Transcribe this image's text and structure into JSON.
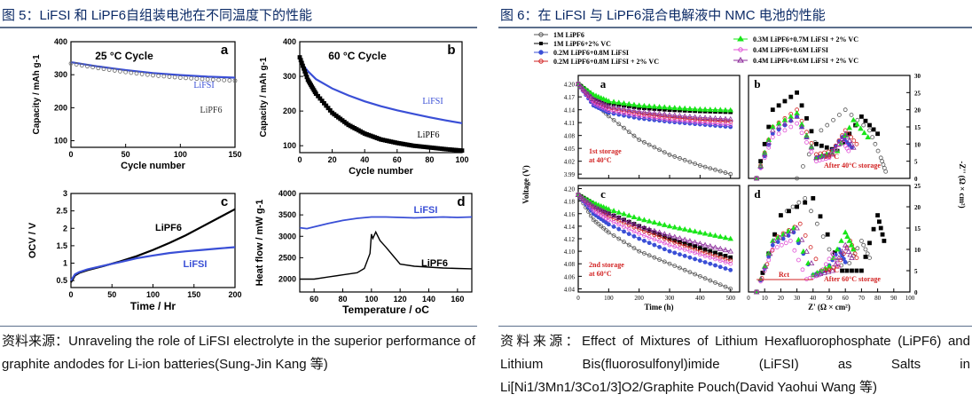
{
  "left": {
    "title": "图 5：LiFSI 和 LiPF6自组装电池在不同温度下的性能",
    "source_label": "资料来源：",
    "source_text": "Unraveling the role of LiFSI electrolyte in the superior performance of graphite andodes for Li-ion batteries(Sung-Jin Kang 等)"
  },
  "right": {
    "title": "图 6：在 LiFSI 与 LiPF6混合电解液中 NMC 电池的性能",
    "source_label": "资料来源：",
    "source_text": "Effect of Mixtures of Lithium Hexafluorophosphate (LiPF6) and Lithium Bis(fluorosulfonyl)imide (LiFSI) as Salts in Li[Ni1/3Mn1/3Co1/3]O2/Graphite Pouch(David Yaohui Wang 等)"
  },
  "colors": {
    "lifsi": "#3a4fd6",
    "lipf6": "#111111",
    "green": "#19e619",
    "pink": "#e04fd6",
    "red": "#d22222",
    "title": "#0b2a66"
  },
  "chart_data": [
    {
      "id": "fig5a",
      "type": "line",
      "panel_letter": "a",
      "title": "25 °C Cycle",
      "xlabel": "Cycle number",
      "ylabel": "Capacity / mAh g-1",
      "xlim": [
        0,
        150
      ],
      "ylim": [
        80,
        400
      ],
      "xticks": [
        0,
        50,
        100,
        150
      ],
      "yticks": [
        100,
        200,
        300,
        400
      ],
      "series": [
        {
          "name": "LiFSI",
          "x": [
            0,
            25,
            50,
            75,
            100,
            125,
            150
          ],
          "y": [
            338,
            325,
            314,
            305,
            299,
            294,
            291
          ]
        },
        {
          "name": "LiPF6",
          "x": [
            0,
            25,
            50,
            75,
            100,
            125,
            150
          ],
          "y": [
            334,
            320,
            308,
            298,
            291,
            286,
            282
          ]
        }
      ]
    },
    {
      "id": "fig5b",
      "type": "line",
      "panel_letter": "b",
      "title": "60 °C Cycle",
      "xlabel": "Cycle number",
      "ylabel": "Capacity / mAh g-1",
      "xlim": [
        0,
        100
      ],
      "ylim": [
        80,
        400
      ],
      "xticks": [
        0,
        20,
        40,
        60,
        80,
        100
      ],
      "yticks": [
        100,
        200,
        300,
        400
      ],
      "series": [
        {
          "name": "LiFSI",
          "x": [
            0,
            5,
            10,
            20,
            30,
            40,
            50,
            60,
            70,
            80,
            90,
            100
          ],
          "y": [
            345,
            315,
            292,
            265,
            245,
            228,
            214,
            202,
            192,
            182,
            173,
            165
          ]
        },
        {
          "name": "LiPF6",
          "x": [
            0,
            5,
            10,
            20,
            30,
            40,
            50,
            60,
            70,
            80,
            90,
            100
          ],
          "y": [
            355,
            290,
            250,
            195,
            160,
            135,
            118,
            108,
            100,
            95,
            90,
            86
          ]
        }
      ]
    },
    {
      "id": "fig5c",
      "type": "line",
      "panel_letter": "c",
      "xlabel": "Time / Hr",
      "ylabel": "OCV / V",
      "xlim": [
        0,
        200
      ],
      "ylim": [
        0.3,
        3.0
      ],
      "xticks": [
        0,
        50,
        100,
        150,
        200
      ],
      "yticks": [
        0.5,
        1.0,
        1.5,
        2.0,
        2.5,
        3.0
      ],
      "series": [
        {
          "name": "LiPF6",
          "x": [
            0,
            5,
            10,
            20,
            40,
            60,
            80,
            100,
            120,
            140,
            160,
            180,
            200
          ],
          "y": [
            0.45,
            0.65,
            0.72,
            0.8,
            0.92,
            1.05,
            1.2,
            1.38,
            1.58,
            1.8,
            2.05,
            2.3,
            2.55
          ]
        },
        {
          "name": "LiFSI",
          "x": [
            0,
            5,
            10,
            20,
            40,
            60,
            80,
            100,
            120,
            140,
            160,
            180,
            200
          ],
          "y": [
            0.5,
            0.68,
            0.74,
            0.82,
            0.93,
            1.03,
            1.14,
            1.22,
            1.29,
            1.34,
            1.38,
            1.42,
            1.46
          ]
        }
      ]
    },
    {
      "id": "fig5d",
      "type": "line",
      "panel_letter": "d",
      "xlabel": "Temperature / oC",
      "ylabel": "Heat flow / mW g-1",
      "xlim": [
        50,
        170
      ],
      "ylim": [
        1700,
        4000
      ],
      "xticks": [
        60,
        80,
        100,
        120,
        140,
        160
      ],
      "yticks": [
        2000,
        2500,
        3000,
        3500,
        4000
      ],
      "series": [
        {
          "name": "LiFSI",
          "x": [
            50,
            55,
            60,
            70,
            80,
            90,
            100,
            110,
            120,
            130,
            140,
            150,
            160,
            170
          ],
          "y": [
            3200,
            3180,
            3220,
            3300,
            3370,
            3420,
            3450,
            3450,
            3440,
            3430,
            3440,
            3450,
            3440,
            3450
          ]
        },
        {
          "name": "LiPF6",
          "x": [
            50,
            60,
            70,
            80,
            90,
            95,
            99,
            100,
            101,
            103,
            106,
            110,
            115,
            120,
            130,
            140,
            150,
            160,
            170
          ],
          "y": [
            2000,
            2000,
            2050,
            2100,
            2150,
            2250,
            2600,
            3050,
            2950,
            3100,
            2900,
            2750,
            2550,
            2350,
            2300,
            2280,
            2260,
            2250,
            2240
          ]
        }
      ]
    },
    {
      "id": "fig6a",
      "type": "scatter",
      "panel_letter": "a",
      "annotation": "1st storage at 40°C",
      "ylabel": "Voltage (V)",
      "xlim": [
        0,
        530
      ],
      "ylim": [
        3.98,
        4.22
      ],
      "xticks": [
        0,
        100,
        200,
        300,
        400,
        500
      ],
      "yticks": [
        3.99,
        4.02,
        4.05,
        4.08,
        4.11,
        4.14,
        4.17,
        4.2
      ],
      "ytick_labels": [
        "3.99",
        "4.02",
        "4.05",
        "4.08",
        "4.11",
        "4.14",
        "4.17",
        "4.20"
      ],
      "series": [
        {
          "name": "1M LiPF6",
          "x": [
            0,
            50,
            100,
            200,
            300,
            400,
            500
          ],
          "y": [
            4.2,
            4.16,
            4.125,
            4.07,
            4.035,
            4.01,
            3.99
          ]
        },
        {
          "name": "1M LiPF6+2% VC",
          "x": [
            0,
            50,
            100,
            200,
            300,
            400,
            500
          ],
          "y": [
            4.2,
            4.17,
            4.155,
            4.145,
            4.14,
            4.137,
            4.135
          ]
        },
        {
          "name": "0.2M LiPF6+0.8M LiFSI",
          "x": [
            0,
            50,
            100,
            200,
            300,
            400,
            500
          ],
          "y": [
            4.2,
            4.15,
            4.133,
            4.12,
            4.112,
            4.106,
            4.1
          ]
        },
        {
          "name": "0.2M LiPF6+0.8M LiFSI + 2% VC",
          "x": [
            0,
            50,
            100,
            200,
            300,
            400,
            500
          ],
          "y": [
            4.2,
            4.16,
            4.142,
            4.13,
            4.122,
            4.116,
            4.112
          ]
        },
        {
          "name": "0.3M LiPF6+0.7M LiFSI + 2% VC",
          "x": [
            0,
            50,
            100,
            200,
            300,
            400,
            500
          ],
          "y": [
            4.2,
            4.175,
            4.16,
            4.15,
            4.145,
            4.141,
            4.139
          ]
        },
        {
          "name": "0.4M LiPF6+0.6M LiFSI",
          "x": [
            0,
            50,
            100,
            200,
            300,
            400,
            500
          ],
          "y": [
            4.2,
            4.155,
            4.138,
            4.125,
            4.116,
            4.11,
            4.105
          ]
        },
        {
          "name": "0.4M LiPF6+0.6M LiFSI + 2% VC",
          "x": [
            0,
            50,
            100,
            200,
            300,
            400,
            500
          ],
          "y": [
            4.2,
            4.165,
            4.148,
            4.136,
            4.128,
            4.122,
            4.118
          ]
        }
      ]
    },
    {
      "id": "fig6c",
      "type": "scatter",
      "panel_letter": "c",
      "annotation": "2nd storage at 60°C",
      "xlabel": "Time (h)",
      "ylabel": "Voltage (V)",
      "xlim": [
        0,
        530
      ],
      "ylim": [
        4.035,
        4.205
      ],
      "xticks": [
        0,
        100,
        200,
        300,
        400,
        500
      ],
      "yticks": [
        4.04,
        4.06,
        4.08,
        4.1,
        4.12,
        4.14,
        4.16,
        4.18,
        4.2
      ],
      "ytick_labels": [
        "4.04",
        "4.06",
        "4.08",
        "4.10",
        "4.12",
        "4.14",
        "4.16",
        "4.18",
        "4.20"
      ],
      "series": [
        {
          "name": "1M LiPF6",
          "x": [
            0,
            50,
            100,
            200,
            300,
            400,
            500
          ],
          "y": [
            4.19,
            4.15,
            4.13,
            4.1,
            4.08,
            4.06,
            4.04
          ]
        },
        {
          "name": "1M LiPF6+2% VC",
          "x": [
            0,
            50,
            100,
            200,
            300,
            400,
            500
          ],
          "y": [
            4.19,
            4.175,
            4.16,
            4.14,
            4.12,
            4.105,
            4.09
          ]
        },
        {
          "name": "0.2M LiPF6+0.8M LiFSI",
          "x": [
            0,
            50,
            100,
            200,
            300,
            400,
            500
          ],
          "y": [
            4.19,
            4.16,
            4.143,
            4.12,
            4.1,
            4.085,
            4.07
          ]
        },
        {
          "name": "0.2M LiPF6+0.8M LiFSI + 2% VC",
          "x": [
            0,
            50,
            100,
            200,
            300,
            400,
            500
          ],
          "y": [
            4.19,
            4.17,
            4.155,
            4.135,
            4.117,
            4.1,
            4.085
          ]
        },
        {
          "name": "0.3M LiPF6+0.7M LiFSI + 2% VC",
          "x": [
            0,
            50,
            100,
            200,
            300,
            400,
            500
          ],
          "y": [
            4.19,
            4.177,
            4.167,
            4.152,
            4.14,
            4.13,
            4.12
          ]
        },
        {
          "name": "0.4M LiPF6+0.6M LiFSI",
          "x": [
            0,
            50,
            100,
            200,
            300,
            400,
            500
          ],
          "y": [
            4.19,
            4.165,
            4.15,
            4.128,
            4.11,
            4.095,
            4.08
          ]
        },
        {
          "name": "0.4M LiPF6+0.6M LiFSI + 2% VC",
          "x": [
            0,
            50,
            100,
            200,
            300,
            400,
            500
          ],
          "y": [
            4.19,
            4.172,
            4.16,
            4.14,
            4.125,
            4.112,
            4.1
          ]
        }
      ]
    },
    {
      "id": "fig6b",
      "type": "scatter",
      "panel_letter": "b",
      "annotation": [
        "10°C",
        "After 40°C storage"
      ],
      "ylabel": "-Z'' (Ω × cm²)",
      "xlim": [
        0,
        100
      ],
      "ylim": [
        0,
        30
      ],
      "yticks": [
        0,
        5,
        10,
        15,
        20,
        25,
        30
      ],
      "series": [
        {
          "name": "1M LiPF6",
          "x": [
            30,
            45,
            60,
            75,
            82,
            85
          ],
          "y": [
            0,
            14,
            20,
            14,
            6,
            2
          ]
        },
        {
          "name": "1M LiPF6+2% VC",
          "x": [
            5,
            15,
            30,
            42,
            55,
            70,
            80
          ],
          "y": [
            0,
            20,
            25,
            10,
            8,
            18,
            13
          ]
        },
        {
          "name": "0.2M LiPF6+0.8M LiFSI",
          "x": [
            5,
            15,
            30,
            42,
            50,
            58,
            64
          ],
          "y": [
            0,
            13,
            18,
            6,
            7,
            12,
            9
          ]
        },
        {
          "name": "0.2M LiPF6+0.8M LiFSI + 2% VC",
          "x": [
            5,
            15,
            30,
            42,
            52,
            60,
            67
          ],
          "y": [
            0,
            15,
            20,
            7,
            8,
            14,
            10
          ]
        },
        {
          "name": "0.3M LiPF6+0.7M LiFSI + 2% VC",
          "x": [
            5,
            15,
            30,
            42,
            55,
            65,
            74
          ],
          "y": [
            0,
            15,
            19,
            6,
            8,
            17,
            12
          ]
        },
        {
          "name": "0.4M LiPF6+0.6M LiFSI",
          "x": [
            5,
            15,
            30,
            42,
            50,
            58,
            62
          ],
          "y": [
            0,
            12,
            16,
            5,
            6,
            11,
            8
          ]
        },
        {
          "name": "0.4M LiPF6+0.6M LiFSI + 2% VC",
          "x": [
            5,
            15,
            30,
            42,
            52,
            60,
            65
          ],
          "y": [
            0,
            14,
            18,
            6,
            7,
            13,
            9
          ]
        }
      ]
    },
    {
      "id": "fig6d",
      "type": "scatter",
      "panel_letter": "d",
      "annotation": [
        "10°C",
        "After 60°C storage"
      ],
      "rct_label": "Rct",
      "xlabel": "Z' (Ω × cm²)",
      "ylabel": "-Z'' (Ω × cm²)",
      "xlim": [
        0,
        100
      ],
      "ylim": [
        0,
        25
      ],
      "xticks": [
        0,
        10,
        20,
        30,
        40,
        50,
        60,
        70,
        80,
        90,
        100
      ],
      "yticks": [
        0,
        5,
        10,
        15,
        20,
        25
      ],
      "series": [
        {
          "name": "1M LiPF6",
          "x": [
            5,
            20,
            35,
            50,
            60,
            70,
            75
          ],
          "y": [
            0,
            18,
            22,
            10,
            5,
            12,
            8
          ]
        },
        {
          "name": "1M LiPF6+2% VC",
          "x": [
            5,
            20,
            40,
            58,
            70,
            80,
            84
          ],
          "y": [
            0,
            18,
            22,
            5,
            5,
            18,
            12
          ]
        },
        {
          "name": "0.2M LiPF6+0.8M LiFSI",
          "x": [
            5,
            15,
            28,
            40,
            48,
            56,
            60
          ],
          "y": [
            0,
            11,
            14,
            4,
            5,
            10,
            7
          ]
        },
        {
          "name": "0.2M LiPF6+0.8M LiFSI + 2% VC",
          "x": [
            5,
            18,
            32,
            45,
            55,
            63,
            67
          ],
          "y": [
            0,
            13,
            16,
            5,
            6,
            12,
            8
          ]
        },
        {
          "name": "0.3M LiPF6+0.7M LiFSI + 2% VC",
          "x": [
            5,
            15,
            28,
            40,
            50,
            60,
            65
          ],
          "y": [
            0,
            12,
            15,
            4,
            6,
            14,
            10
          ]
        },
        {
          "name": "0.4M LiPF6+0.6M LiFSI",
          "x": [
            5,
            15,
            26,
            36,
            44,
            52,
            56
          ],
          "y": [
            0,
            10,
            12,
            3,
            4,
            9,
            6
          ]
        },
        {
          "name": "0.4M LiPF6+0.6M LiFSI + 2% VC",
          "x": [
            5,
            16,
            30,
            42,
            52,
            60,
            64
          ],
          "y": [
            0,
            12,
            15,
            4,
            5,
            11,
            8
          ]
        }
      ]
    }
  ]
}
